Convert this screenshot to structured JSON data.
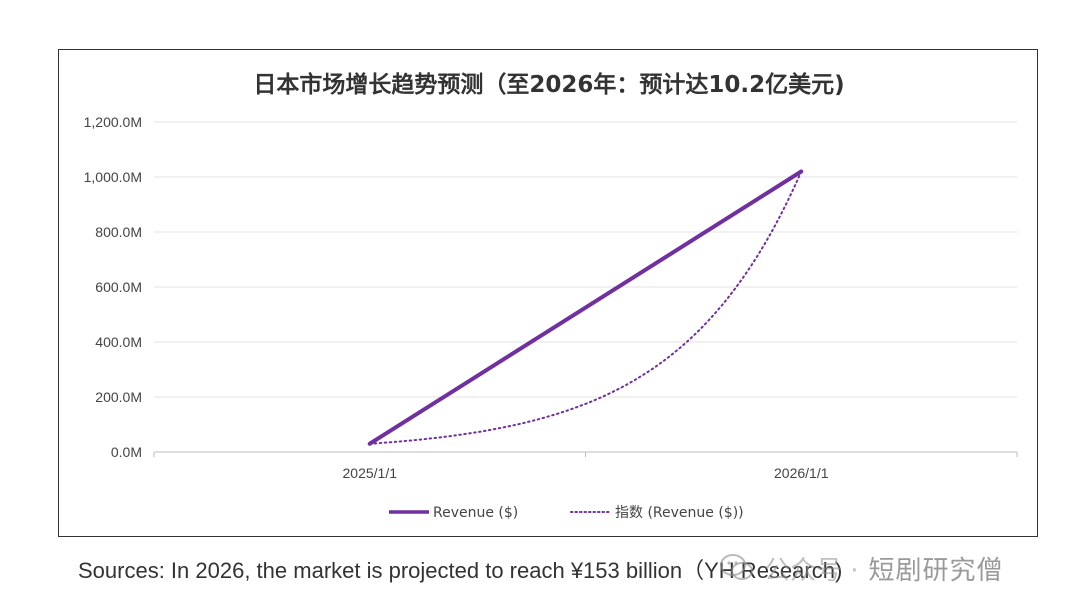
{
  "chart_data": {
    "type": "line",
    "title": "日本市场增长趋势预测（至2026年：预计达10.2亿美元)",
    "categories": [
      "2025/1/1",
      "2026/1/1"
    ],
    "ylim": [
      0,
      1200
    ],
    "yticks": [
      "0.0M",
      "200.0M",
      "400.0M",
      "600.0M",
      "800.0M",
      "1,000.0M",
      "1,200.0M"
    ],
    "ytick_values": [
      0,
      200,
      400,
      600,
      800,
      1000,
      1200
    ],
    "grid": true,
    "legend_position": "bottom",
    "series": [
      {
        "name": "Revenue ($)",
        "style": "solid",
        "color": "#7030A0",
        "x": [
          "2025/1/1",
          "2026/1/1"
        ],
        "values": [
          30,
          1020
        ]
      },
      {
        "name": "指数 (Revenue ($))",
        "style": "dotted",
        "color": "#7030A0",
        "x": [
          "2025/1/1",
          "2026/1/1"
        ],
        "values": [
          30,
          1020
        ],
        "trend": "exponential"
      }
    ]
  },
  "source_text": "Sources: In 2026, the market is projected to reach ¥153 billion（YH Research)",
  "watermark": {
    "icon": "wechat-icon",
    "channel": "公众号 ·",
    "brand": "短剧研究僧"
  }
}
